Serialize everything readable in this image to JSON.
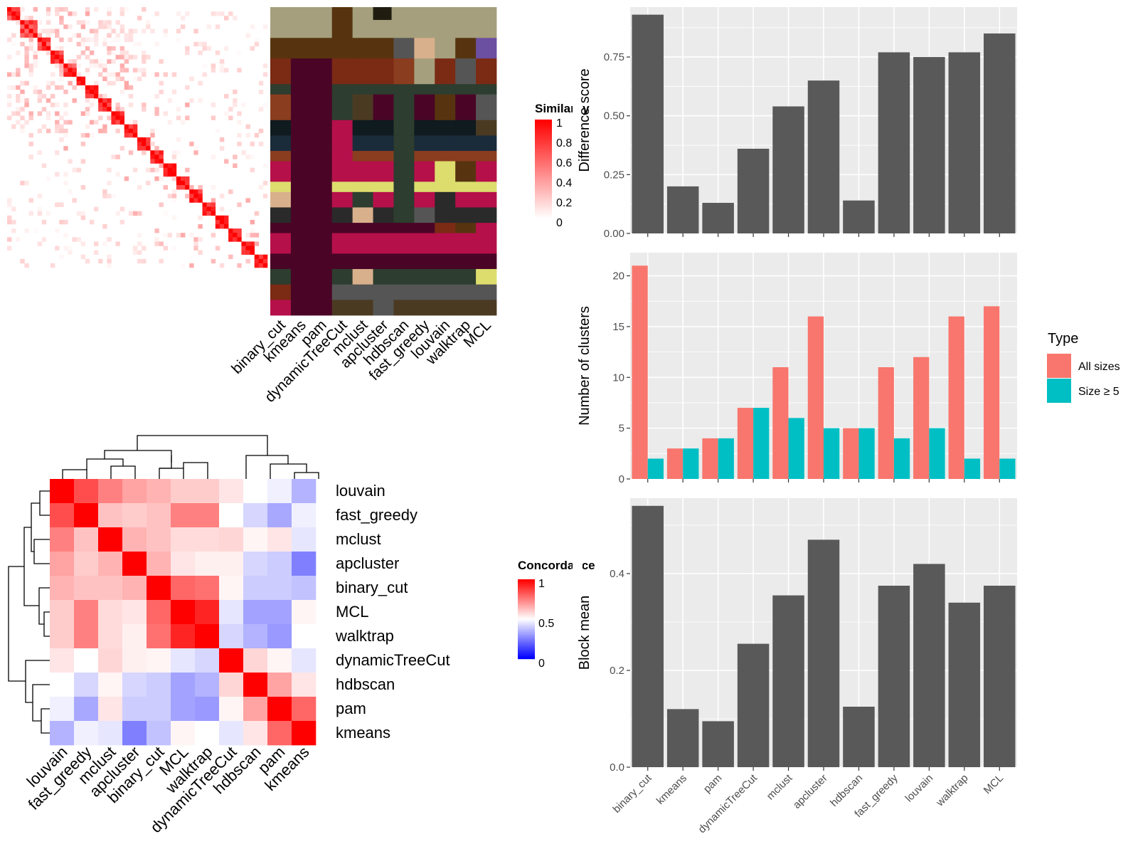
{
  "methods_bar_order": [
    "binary_cut",
    "kmeans",
    "pam",
    "dynamicTreeCut",
    "mclust",
    "apcluster",
    "hdbscan",
    "fast_greedy",
    "louvain",
    "walktrap",
    "MCL"
  ],
  "colors": {
    "bar_gray": "#595959",
    "panel_bg": "#ebebeb",
    "grid": "#ffffff",
    "all_sizes": "#f8766d",
    "size_ge5": "#00bfc4",
    "heat_high": "#ff0000",
    "heat_mid": "#ffffff",
    "heat_low": "#0000ff"
  },
  "similarity_legend": {
    "title": "Similarity",
    "ticks": [
      "1",
      "0.8",
      "0.6",
      "0.4",
      "0.2",
      "0"
    ]
  },
  "concordance_legend": {
    "title": "Concordance",
    "ticks": [
      "1",
      "0.5",
      "0"
    ]
  },
  "type_legend": {
    "title": "Type",
    "items": [
      "All sizes",
      "Size ≥ 5"
    ]
  },
  "class_heatmap": {
    "columns": [
      "binary_cut",
      "kmeans",
      "pam",
      "dynamicTreeCut",
      "mclust",
      "apcluster",
      "hdbscan",
      "fast_greedy",
      "louvain",
      "walktrap",
      "MCL"
    ],
    "row_count": 60
  },
  "concordance_heatmap": {
    "rows": [
      "louvain",
      "fast_greedy",
      "mclust",
      "apcluster",
      "binary_cut",
      "MCL",
      "walktrap",
      "dynamicTreeCut",
      "hdbscan",
      "pam",
      "kmeans"
    ],
    "columns": [
      "louvain",
      "fast_greedy",
      "mclust",
      "apcluster",
      "binary_cut",
      "MCL",
      "walktrap",
      "dynamicTreeCut",
      "hdbscan",
      "pam",
      "kmeans"
    ],
    "values": [
      [
        1.0,
        0.85,
        0.75,
        0.68,
        0.65,
        0.6,
        0.6,
        0.55,
        0.5,
        0.47,
        0.35
      ],
      [
        0.85,
        1.0,
        0.62,
        0.6,
        0.62,
        0.75,
        0.75,
        0.5,
        0.42,
        0.33,
        0.47
      ],
      [
        0.75,
        0.62,
        1.0,
        0.65,
        0.62,
        0.57,
        0.57,
        0.58,
        0.52,
        0.55,
        0.45
      ],
      [
        0.68,
        0.6,
        0.65,
        1.0,
        0.65,
        0.55,
        0.53,
        0.53,
        0.42,
        0.4,
        0.25
      ],
      [
        0.65,
        0.62,
        0.62,
        0.65,
        1.0,
        0.8,
        0.78,
        0.52,
        0.4,
        0.4,
        0.38
      ],
      [
        0.6,
        0.75,
        0.57,
        0.55,
        0.8,
        1.0,
        0.93,
        0.45,
        0.32,
        0.32,
        0.52
      ],
      [
        0.6,
        0.75,
        0.57,
        0.53,
        0.78,
        0.93,
        1.0,
        0.42,
        0.35,
        0.3,
        0.5
      ],
      [
        0.55,
        0.5,
        0.58,
        0.53,
        0.52,
        0.45,
        0.42,
        1.0,
        0.58,
        0.52,
        0.45
      ],
      [
        0.5,
        0.42,
        0.52,
        0.42,
        0.4,
        0.32,
        0.35,
        0.58,
        1.0,
        0.68,
        0.55
      ],
      [
        0.47,
        0.33,
        0.55,
        0.4,
        0.4,
        0.32,
        0.3,
        0.52,
        0.68,
        1.0,
        0.8
      ],
      [
        0.35,
        0.47,
        0.45,
        0.25,
        0.38,
        0.52,
        0.5,
        0.45,
        0.55,
        0.8,
        1.0
      ]
    ]
  },
  "chart_data": [
    {
      "type": "bar",
      "categories": [
        "binary_cut",
        "kmeans",
        "pam",
        "dynamicTreeCut",
        "mclust",
        "apcluster",
        "hdbscan",
        "fast_greedy",
        "louvain",
        "walktrap",
        "MCL"
      ],
      "values": [
        0.93,
        0.2,
        0.13,
        0.36,
        0.54,
        0.65,
        0.14,
        0.77,
        0.75,
        0.77,
        0.85
      ],
      "ylabel": "Difference score",
      "ylim": [
        0,
        0.95
      ],
      "yticks": [
        "0.00",
        "0.25",
        "0.50",
        "0.75"
      ],
      "grid": true
    },
    {
      "type": "bar",
      "categories": [
        "binary_cut",
        "kmeans",
        "pam",
        "dynamicTreeCut",
        "mclust",
        "apcluster",
        "hdbscan",
        "fast_greedy",
        "louvain",
        "walktrap",
        "MCL"
      ],
      "series": [
        {
          "name": "All sizes",
          "values": [
            21,
            3,
            4,
            7,
            11,
            16,
            5,
            11,
            12,
            16,
            17
          ]
        },
        {
          "name": "Size ≥ 5",
          "values": [
            2,
            3,
            4,
            7,
            6,
            5,
            5,
            4,
            5,
            2,
            2
          ]
        }
      ],
      "ylabel": "Number of clusters",
      "ylim": [
        0,
        22
      ],
      "yticks": [
        "0",
        "5",
        "10",
        "15",
        "20"
      ],
      "legend": "right",
      "grid": true
    },
    {
      "type": "bar",
      "categories": [
        "binary_cut",
        "kmeans",
        "pam",
        "dynamicTreeCut",
        "mclust",
        "apcluster",
        "hdbscan",
        "fast_greedy",
        "louvain",
        "walktrap",
        "MCL"
      ],
      "values": [
        0.54,
        0.12,
        0.095,
        0.255,
        0.355,
        0.47,
        0.125,
        0.375,
        0.42,
        0.34,
        0.375
      ],
      "ylabel": "Block mean",
      "ylim": [
        0,
        0.55
      ],
      "yticks": [
        "0.0",
        "0.2",
        "0.4"
      ],
      "grid": true
    }
  ]
}
